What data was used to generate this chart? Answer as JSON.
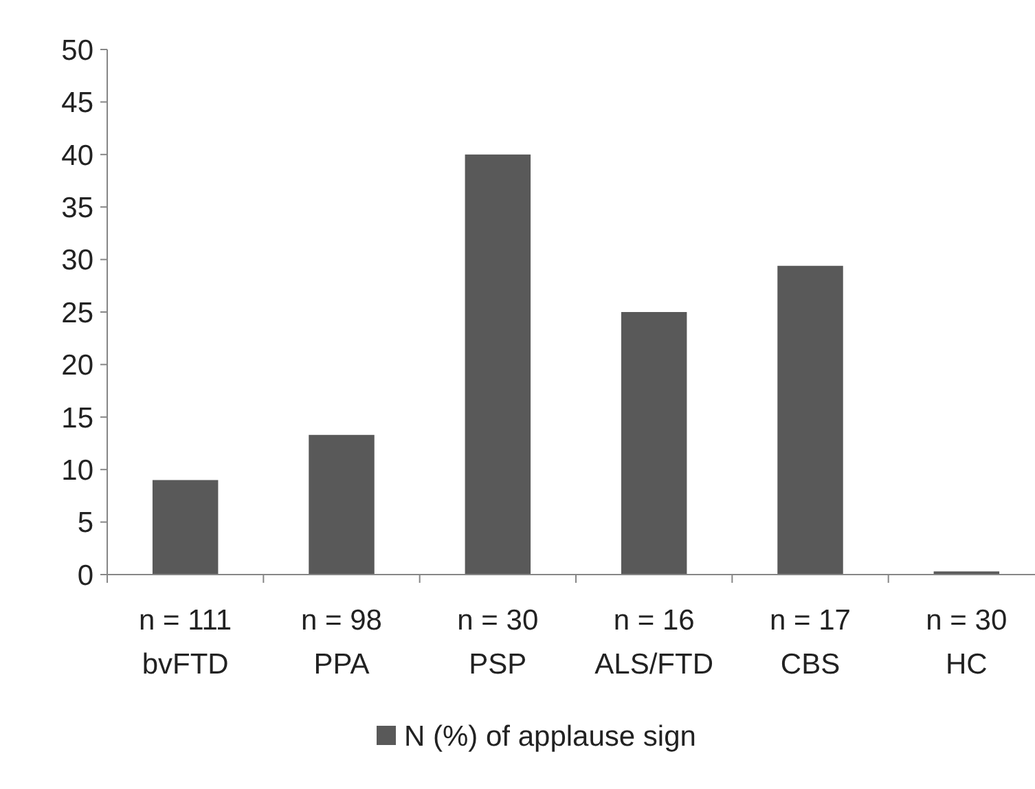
{
  "chart_data": {
    "type": "bar",
    "categories": [
      "n = 111\nbvFTD",
      "n = 98\nPPA",
      "n = 30\nPSP",
      "n = 16\nALS/FTD",
      "n = 17\nCBS",
      "n = 30\nHC"
    ],
    "series": [
      {
        "name": "N (%) of applause sign",
        "color": "#595959",
        "values": [
          9,
          13.3,
          40,
          25,
          29.4,
          0.3
        ]
      }
    ],
    "ylim": [
      0,
      50
    ],
    "yticks": [
      0,
      5,
      10,
      15,
      20,
      25,
      30,
      35,
      40,
      45,
      50
    ],
    "grid": false,
    "legend": "bottom"
  }
}
